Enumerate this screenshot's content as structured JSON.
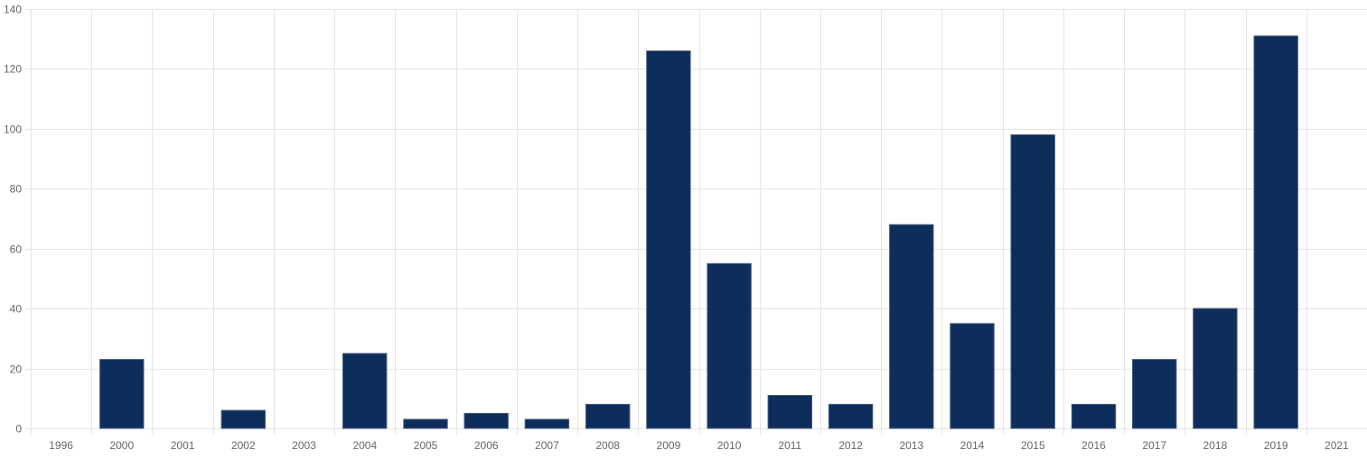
{
  "colors": {
    "bar_fill": "#0d2d5a",
    "bar_stroke": "#4a5a7a",
    "grid": "#e4e4e4",
    "axis_text": "#666666"
  },
  "chart_data": {
    "type": "bar",
    "title": "",
    "xlabel": "",
    "ylabel": "",
    "categories": [
      "1996",
      "2000",
      "2001",
      "2002",
      "2003",
      "2004",
      "2005",
      "2006",
      "2007",
      "2008",
      "2009",
      "2010",
      "2011",
      "2012",
      "2013",
      "2014",
      "2015",
      "2016",
      "2017",
      "2018",
      "2019",
      "2021"
    ],
    "values": [
      0,
      23,
      0,
      6,
      0,
      25,
      3,
      5,
      3,
      8,
      126,
      55,
      11,
      8,
      68,
      35,
      98,
      8,
      23,
      40,
      131,
      0
    ],
    "ylim": [
      0,
      140
    ],
    "yticks": [
      0,
      20,
      40,
      60,
      80,
      100,
      120,
      140
    ],
    "grid": true,
    "legend": "none"
  }
}
